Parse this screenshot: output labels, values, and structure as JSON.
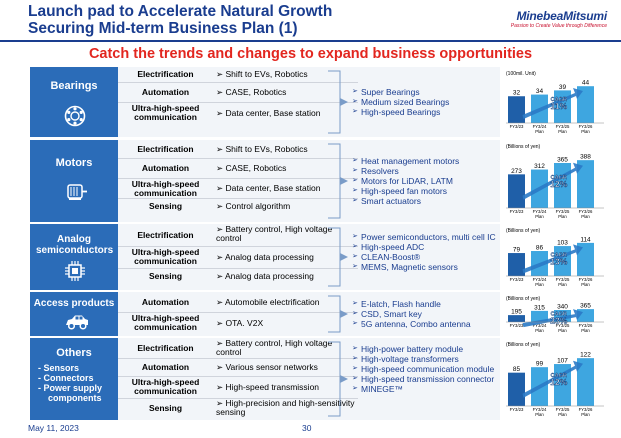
{
  "header": {
    "title_line1": "Launch pad to Accelerate Natural Growth",
    "title_line2": "Securing Mid-term Business Plan (1)",
    "logo": "MinebeaMitsumi",
    "logo_tagline": "Passion to Create Value through Difference",
    "subtitle": "Catch the trends and changes to expand business opportunities"
  },
  "sections": [
    {
      "name": "Bearings",
      "rows": [
        {
          "direction": "Electrification",
          "application": "Shift to EVs, Robotics"
        },
        {
          "direction": "Automation",
          "application": "CASE, Robotics"
        },
        {
          "direction": "Ultra-high-speed communication",
          "application": "Data center, Base station"
        }
      ],
      "products": [
        "Super Bearings",
        "Medium sized Bearings",
        "High-speed Bearings"
      ]
    },
    {
      "name": "Motors",
      "rows": [
        {
          "direction": "Electrification",
          "application": "Shift to EVs, Robotics"
        },
        {
          "direction": "Automation",
          "application": "CASE, Robotics"
        },
        {
          "direction": "Ultra-high-speed communication",
          "application": "Data center, Base station"
        },
        {
          "direction": "Sensing",
          "application": "Control algorithm"
        }
      ],
      "products": [
        "Heat management motors",
        "Resolvers",
        "Motors for LiDAR, LATM",
        "High-speed fan motors",
        "Smart actuators"
      ]
    },
    {
      "name": "Analog semiconductors",
      "rows": [
        {
          "direction": "Electrification",
          "application": "Battery control, High voltage control"
        },
        {
          "direction": "Ultra-high-speed communication",
          "application": "Analog data processing"
        },
        {
          "direction": "Sensing",
          "application": "Analog data processing"
        }
      ],
      "products": [
        "Power semiconductors, multi cell IC",
        "High-speed ADC",
        "CLEAN-Boost®",
        "MEMS, Magnetic sensors"
      ]
    },
    {
      "name": "Access products",
      "rows": [
        {
          "direction": "Automation",
          "application": "Automobile electrification"
        },
        {
          "direction": "Ultra-high-speed communication",
          "application": "OTA. V2X"
        }
      ],
      "products": [
        "E-latch, Flash handle",
        "CSD, Smart key",
        "5G antenna, Combo antenna"
      ]
    },
    {
      "name": "Others",
      "sub": [
        "- Sensors",
        "- Connectors",
        "- Power supply",
        "  components"
      ],
      "rows": [
        {
          "direction": "Electrification",
          "application": "Battery control, High voltage control"
        },
        {
          "direction": "Automation",
          "application": "Various sensor networks"
        },
        {
          "direction": "Ultra-high-speed communication",
          "application": "High-speed transmission"
        },
        {
          "direction": "Sensing",
          "application": "High-precision and high-sensitivity sensing"
        }
      ],
      "products": [
        "High-power battery module",
        "High-voltage transformers",
        "High-speed communication module",
        "High-speed transmission connector",
        "MINEGE™"
      ]
    }
  ],
  "chart_data": [
    {
      "type": "bar",
      "unit": "(100mil. Unit)",
      "categories": [
        "FY3/23",
        "FY3/24 Plan",
        "FY3/25 Plan",
        "FY3/26 Plan"
      ],
      "values": [
        32,
        34,
        39,
        44
      ],
      "cagr": "CAGR 11%"
    },
    {
      "type": "bar",
      "unit": "(Billions of yen)",
      "categories": [
        "FY3/23",
        "FY3/24 Plan",
        "FY3/25 Plan",
        "FY3/26 Plan"
      ],
      "values": [
        273,
        312,
        365,
        388
      ],
      "cagr": "CAGR 12%"
    },
    {
      "type": "bar",
      "unit": "(Billions of yen)",
      "categories": [
        "FY3/23",
        "FY3/24 Plan",
        "FY3/25 Plan",
        "FY3/26 Plan"
      ],
      "values": [
        79,
        86,
        103,
        114
      ],
      "cagr": "CAGR 13%"
    },
    {
      "type": "bar",
      "unit": "(Billions of yen)",
      "categories": [
        "FY3/23",
        "FY3/24 Plan",
        "FY3/25 Plan",
        "FY3/26 Plan"
      ],
      "values": [
        195,
        315,
        340,
        365
      ],
      "cagr": "CAGR 23%"
    },
    {
      "type": "bar",
      "unit": "(Billions of yen)",
      "categories": [
        "FY3/23",
        "FY3/24 Plan",
        "FY3/25 Plan",
        "FY3/26 Plan"
      ],
      "values": [
        85,
        99,
        107,
        122
      ],
      "cagr": "CAGR 12%"
    }
  ],
  "footer": {
    "date": "May 11, 2023",
    "page": "30"
  },
  "colors": {
    "navy": "#1a3d8f",
    "blue": "#2b6cb8",
    "red": "#e2261f",
    "bar_dark": "#1f5fa8",
    "bar_light": "#3ea6e0"
  }
}
